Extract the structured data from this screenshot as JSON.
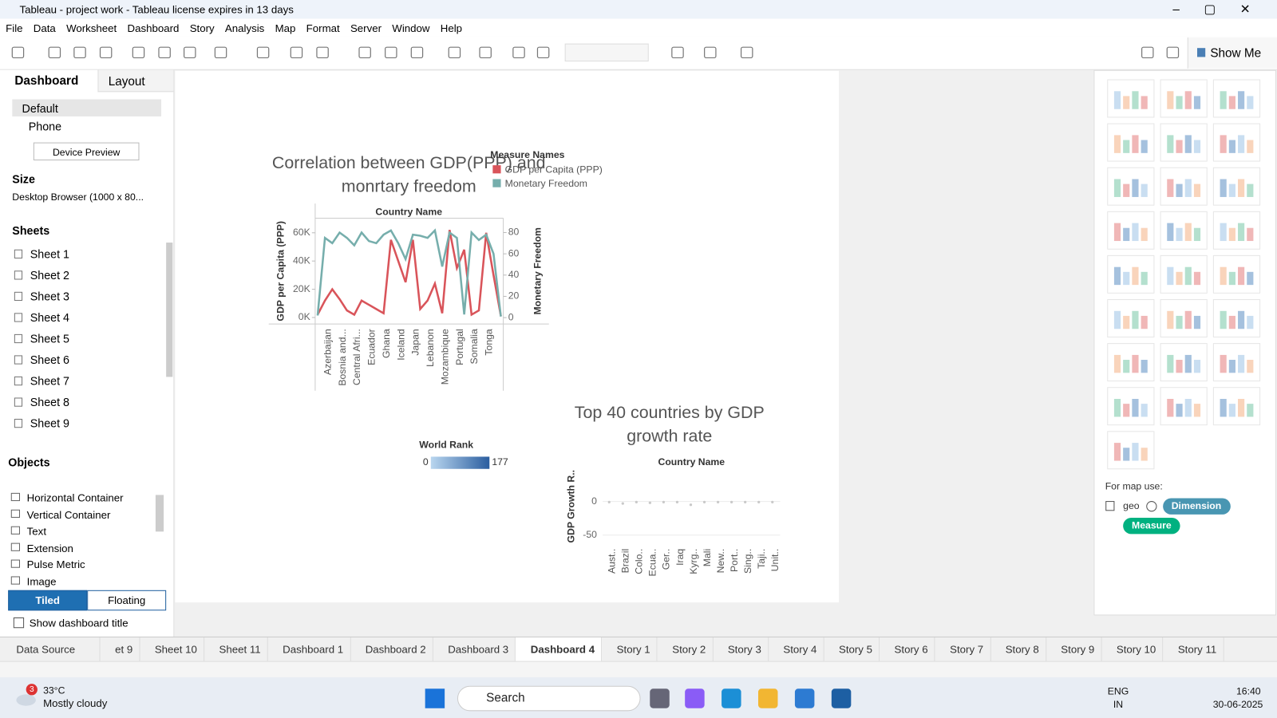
{
  "window": {
    "title": "Tableau - project work - Tableau license expires in 13 days"
  },
  "menu": [
    "File",
    "Data",
    "Worksheet",
    "Dashboard",
    "Story",
    "Analysis",
    "Map",
    "Format",
    "Server",
    "Window",
    "Help"
  ],
  "toolbar": {
    "show_me": "Show Me"
  },
  "sidebar": {
    "tabs": [
      "Dashboard",
      "Layout"
    ],
    "devices": [
      {
        "label": "Default",
        "selected": true
      },
      {
        "label": "Phone"
      }
    ],
    "device_preview": "Device Preview",
    "size_heading": "Size",
    "size_value": "Desktop Browser (1000 x 80...",
    "sheets_heading": "Sheets",
    "sheets": [
      "Sheet 1",
      "Sheet 2",
      "Sheet 3",
      "Sheet 4",
      "Sheet 5",
      "Sheet 6",
      "Sheet 7",
      "Sheet 8",
      "Sheet 9"
    ],
    "objects_heading": "Objects",
    "objects": [
      "Horizontal Container",
      "Vertical Container",
      "Text",
      "Extension",
      "Pulse Metric",
      "Image"
    ],
    "layout_modes": [
      {
        "label": "Tiled",
        "selected": true
      },
      {
        "label": "Floating"
      }
    ],
    "show_title": "Show dashboard title"
  },
  "chart1": {
    "type": "line",
    "title_lines": [
      "Correlation between GDP(PPP) and",
      "monrtary freedom"
    ],
    "header": "Country Name",
    "y_label": "GDP per Capita (PPP)",
    "y2_label": "Monetary Freedom",
    "categories": [
      null,
      "Azerbaijan",
      null,
      "Bosnia and...",
      null,
      "Central Afri...",
      null,
      "Ecuador",
      null,
      "Ghana",
      null,
      "Iceland",
      null,
      "Japan",
      null,
      "Lebanon",
      null,
      "Mozambique",
      null,
      "Portugal",
      null,
      "Somalia",
      null,
      "Tonga",
      null,
      null
    ],
    "series": [
      {
        "name": "GDP per Capita (PPP)",
        "color": "#d9545a",
        "values": [
          2000,
          12000,
          20000,
          13000,
          5000,
          2000,
          12000,
          9000,
          6000,
          3000,
          55000,
          40000,
          25000,
          55000,
          6000,
          12000,
          24000,
          3000,
          62000,
          35000,
          48000,
          2000,
          5000,
          60000,
          30000,
          1000
        ]
      },
      {
        "name": "Monetary Freedom",
        "color": "#76aeac",
        "axis": "y2",
        "values": [
          2,
          75,
          70,
          80,
          75,
          68,
          80,
          72,
          70,
          78,
          82,
          70,
          55,
          78,
          77,
          75,
          82,
          48,
          80,
          75,
          3,
          80,
          73,
          78,
          60,
          1
        ]
      }
    ],
    "ylim": [
      -4600,
      69200
    ],
    "yticks": [
      {
        "value": 0,
        "label": "0K"
      },
      {
        "value": 20000,
        "label": "20K"
      },
      {
        "value": 40000,
        "label": "40K"
      },
      {
        "value": 60000,
        "label": "60K"
      }
    ],
    "y2lim": [
      -6,
      92
    ],
    "y2ticks": [
      0,
      20,
      40,
      60,
      80
    ],
    "legend": {
      "title": "Measure Names"
    }
  },
  "world_rank": {
    "title": "World Rank",
    "min": "0",
    "max": "177"
  },
  "chart2": {
    "type": "scatter",
    "title_lines": [
      "Top 40 countries by GDP",
      "growth rate"
    ],
    "header": "Country Name",
    "y_label": "GDP Growth R..",
    "categories": [
      "Aust..",
      "Brazil",
      "Colo..",
      "Ecua..",
      "Ger..",
      "Iraq",
      "Kyrg..",
      "Mali",
      "New..",
      "Port..",
      "Sing..",
      "Taji..",
      "Unit.."
    ],
    "values": [
      -1,
      -3,
      -1,
      -2,
      -1,
      -1,
      -5,
      -1,
      -1,
      -1,
      -1,
      -1,
      -1
    ],
    "color": "#c9c9c9",
    "ylim": [
      -63,
      46
    ],
    "yticks": [
      0,
      -50
    ]
  },
  "show_me": {
    "map_use": "For map use:",
    "geo": "geo",
    "dimension": "Dimension",
    "measure": "Measure"
  },
  "tabs": [
    {
      "label": "Data Source"
    },
    {
      "label": "et 9"
    },
    {
      "label": "Sheet 10"
    },
    {
      "label": "Sheet 11"
    },
    {
      "label": "Dashboard 1"
    },
    {
      "label": "Dashboard 2"
    },
    {
      "label": "Dashboard 3"
    },
    {
      "label": "Dashboard 4",
      "active": true
    },
    {
      "label": "Story 1"
    },
    {
      "label": "Story 2"
    },
    {
      "label": "Story 3"
    },
    {
      "label": "Story 4"
    },
    {
      "label": "Story 5"
    },
    {
      "label": "Story 6"
    },
    {
      "label": "Story 7"
    },
    {
      "label": "Story 8"
    },
    {
      "label": "Story 9"
    },
    {
      "label": "Story 10"
    },
    {
      "label": "Story 11"
    }
  ],
  "taskbar": {
    "badge": "3",
    "temp": "33°C",
    "weather": "Mostly cloudy",
    "search": "Search",
    "lang": "ENG",
    "region": "IN",
    "time": "16:40",
    "date": "30-06-2025"
  }
}
